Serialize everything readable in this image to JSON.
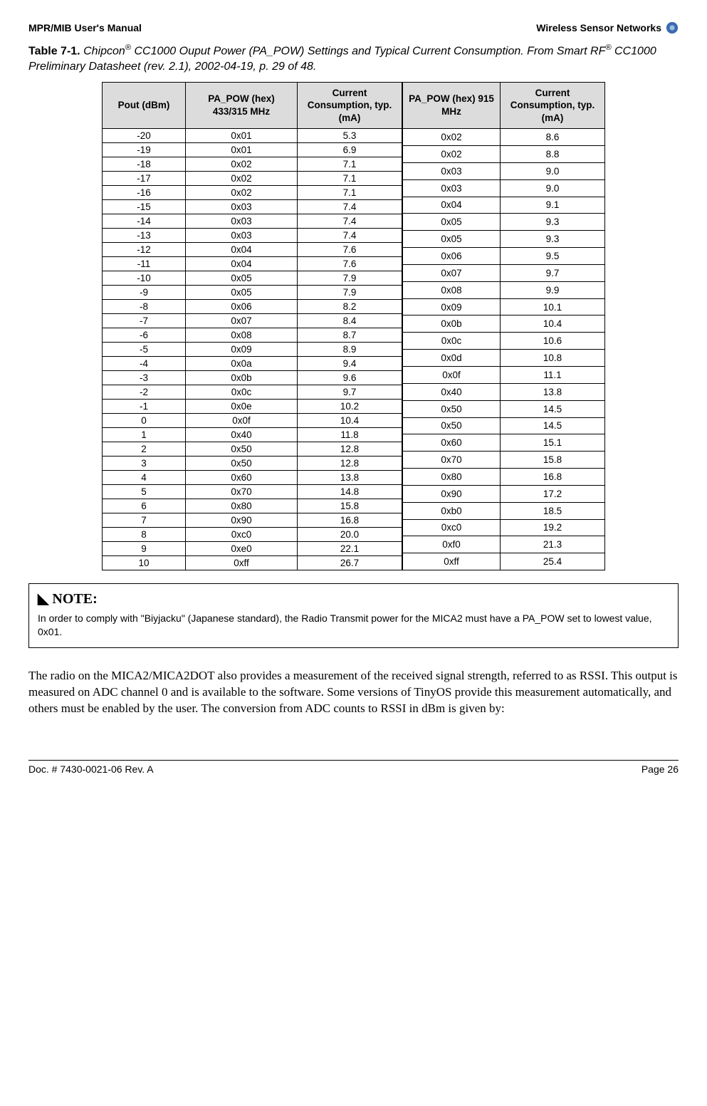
{
  "header": {
    "left": "MPR/MIB User's Manual",
    "right": "Wireless Sensor Networks",
    "logo_outer_color": "#3b6bb0",
    "logo_inner_color": "#9fbde0"
  },
  "caption": {
    "label": "Table 7-1.",
    "text_before_sup1": " Chipcon",
    "sup1": "®",
    "text_mid": " CC1000 Ouput Power (PA_POW) Settings and Typical Current Consumption. From Smart RF",
    "sup2": "®",
    "text_after": " CC1000 Preliminary Datasheet (rev. 2.1), 2002-04-19, p. 29 of 48."
  },
  "table_left": {
    "headers": [
      "Pout (dBm)",
      "PA_POW (hex) 433/315 MHz",
      "Current Consumption, typ.\n(mA)"
    ],
    "rows": [
      [
        "-20",
        "0x01",
        "5.3"
      ],
      [
        "-19",
        "0x01",
        "6.9"
      ],
      [
        "-18",
        "0x02",
        "7.1"
      ],
      [
        "-17",
        "0x02",
        "7.1"
      ],
      [
        "-16",
        "0x02",
        "7.1"
      ],
      [
        "-15",
        "0x03",
        "7.4"
      ],
      [
        "-14",
        "0x03",
        "7.4"
      ],
      [
        "-13",
        "0x03",
        "7.4"
      ],
      [
        "-12",
        "0x04",
        "7.6"
      ],
      [
        "-11",
        "0x04",
        "7.6"
      ],
      [
        "-10",
        "0x05",
        "7.9"
      ],
      [
        "-9",
        "0x05",
        "7.9"
      ],
      [
        "-8",
        "0x06",
        "8.2"
      ],
      [
        "-7",
        "0x07",
        "8.4"
      ],
      [
        "-6",
        "0x08",
        "8.7"
      ],
      [
        "-5",
        "0x09",
        "8.9"
      ],
      [
        "-4",
        "0x0a",
        "9.4"
      ],
      [
        "-3",
        "0x0b",
        "9.6"
      ],
      [
        "-2",
        "0x0c",
        "9.7"
      ],
      [
        "-1",
        "0x0e",
        "10.2"
      ],
      [
        "0",
        "0x0f",
        "10.4"
      ],
      [
        "1",
        "0x40",
        "11.8"
      ],
      [
        "2",
        "0x50",
        "12.8"
      ],
      [
        "3",
        "0x50",
        "12.8"
      ],
      [
        "4",
        "0x60",
        "13.8"
      ],
      [
        "5",
        "0x70",
        "14.8"
      ],
      [
        "6",
        "0x80",
        "15.8"
      ],
      [
        "7",
        "0x90",
        "16.8"
      ],
      [
        "8",
        "0xc0",
        "20.0"
      ],
      [
        "9",
        "0xe0",
        "22.1"
      ],
      [
        "10",
        "0xff",
        "26.7"
      ]
    ]
  },
  "table_right": {
    "headers": [
      "PA_POW (hex)\n915 MHz",
      "Current Consumption, typ.\n(mA)"
    ],
    "rows": [
      [
        "0x02",
        "8.6"
      ],
      [
        "0x02",
        "8.8"
      ],
      [
        "0x03",
        "9.0"
      ],
      [
        "0x03",
        "9.0"
      ],
      [
        "0x04",
        "9.1"
      ],
      [
        "0x05",
        "9.3"
      ],
      [
        "0x05",
        "9.3"
      ],
      [
        "0x06",
        "9.5"
      ],
      [
        "0x07",
        "9.7"
      ],
      [
        "0x08",
        "9.9"
      ],
      [
        "0x09",
        "10.1"
      ],
      [
        "0x0b",
        "10.4"
      ],
      [
        "0x0c",
        "10.6"
      ],
      [
        "0x0d",
        "10.8"
      ],
      [
        "0x0f",
        "11.1"
      ],
      [
        "0x40",
        "13.8"
      ],
      [
        "0x50",
        "14.5"
      ],
      [
        "0x50",
        "14.5"
      ],
      [
        "0x60",
        "15.1"
      ],
      [
        "0x70",
        "15.8"
      ],
      [
        "0x80",
        "16.8"
      ],
      [
        "0x90",
        "17.2"
      ],
      [
        "0xb0",
        "18.5"
      ],
      [
        "0xc0",
        "19.2"
      ],
      [
        "0xf0",
        "21.3"
      ],
      [
        "0xff",
        "25.4"
      ]
    ]
  },
  "note": {
    "title_marker": "◣",
    "title": "NOTE:",
    "body": "In order to comply with \"Biyjacku\" (Japanese standard), the Radio Transmit power for the MICA2 must have a PA_POW set to lowest value, 0x01."
  },
  "body_paragraph": "The radio on the MICA2/MICA2DOT also provides a measurement of the received signal strength, referred to as RSSI. This output is measured on ADC channel 0 and is available to the software. Some versions of TinyOS provide this measurement automatically, and others must be enabled by the user. The conversion from ADC counts to RSSI in dBm is given by:",
  "footer": {
    "left": "Doc. # 7430-0021-06 Rev. A",
    "right": "Page 26"
  }
}
